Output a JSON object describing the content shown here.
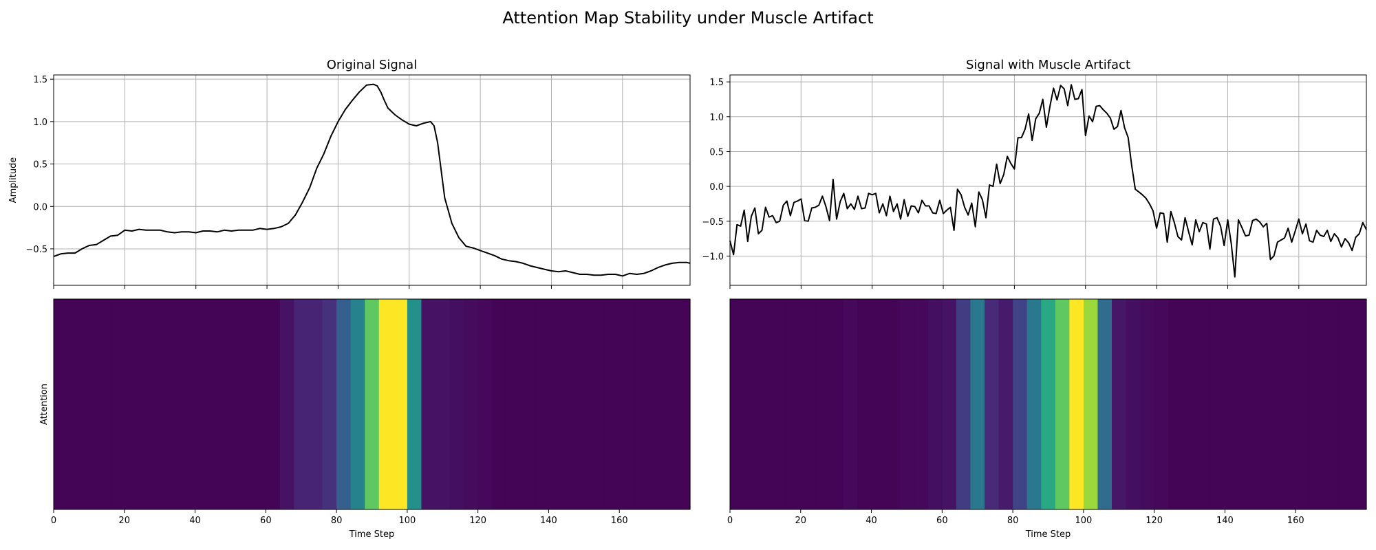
{
  "figure": {
    "title": "Attention Map Stability under Muscle Artifact"
  },
  "chart_data": [
    {
      "id": "orig-signal",
      "type": "line",
      "title": "Original Signal",
      "ylabel": "Amplitude",
      "xlabel": "",
      "xlim": [
        0,
        179
      ],
      "ylim": [
        -0.93,
        1.55
      ],
      "xticks": [
        0,
        20,
        40,
        60,
        80,
        100,
        120,
        140,
        160
      ],
      "yticks": [
        -0.5,
        0.0,
        0.5,
        1.0,
        1.5
      ],
      "ytick_labels": [
        "−0.5",
        "0.0",
        "0.5",
        "1.0",
        "1.5"
      ],
      "grid": true,
      "line_color": "#000000",
      "x": [
        0,
        2,
        4,
        6,
        8,
        10,
        12,
        14,
        16,
        18,
        20,
        22,
        24,
        26,
        28,
        30,
        32,
        34,
        36,
        38,
        40,
        42,
        44,
        46,
        48,
        50,
        52,
        54,
        56,
        58,
        60,
        62,
        64,
        66,
        68,
        70,
        72,
        74,
        76,
        78,
        80,
        82,
        84,
        86,
        88,
        90,
        91,
        92,
        93,
        94,
        96,
        98,
        100,
        102,
        104,
        106,
        107,
        108,
        110,
        112,
        114,
        116,
        118,
        120,
        122,
        124,
        126,
        128,
        130,
        132,
        134,
        136,
        138,
        140,
        142,
        144,
        146,
        148,
        150,
        152,
        154,
        156,
        158,
        160,
        162,
        164,
        166,
        168,
        170,
        172,
        174,
        176,
        178,
        179
      ],
      "values": [
        -0.59,
        -0.56,
        -0.55,
        -0.55,
        -0.5,
        -0.46,
        -0.45,
        -0.4,
        -0.35,
        -0.34,
        -0.28,
        -0.29,
        -0.27,
        -0.28,
        -0.28,
        -0.28,
        -0.3,
        -0.31,
        -0.3,
        -0.3,
        -0.31,
        -0.29,
        -0.29,
        -0.3,
        -0.28,
        -0.29,
        -0.28,
        -0.28,
        -0.28,
        -0.26,
        -0.27,
        -0.26,
        -0.24,
        -0.2,
        -0.1,
        0.05,
        0.22,
        0.45,
        0.62,
        0.83,
        1.0,
        1.14,
        1.25,
        1.35,
        1.43,
        1.44,
        1.42,
        1.35,
        1.25,
        1.16,
        1.08,
        1.02,
        0.97,
        0.95,
        0.98,
        1.0,
        0.95,
        0.75,
        0.1,
        -0.2,
        -0.37,
        -0.47,
        -0.49,
        -0.52,
        -0.55,
        -0.58,
        -0.62,
        -0.64,
        -0.65,
        -0.67,
        -0.7,
        -0.72,
        -0.74,
        -0.76,
        -0.77,
        -0.76,
        -0.78,
        -0.8,
        -0.8,
        -0.81,
        -0.81,
        -0.8,
        -0.8,
        -0.82,
        -0.79,
        -0.8,
        -0.79,
        -0.76,
        -0.72,
        -0.69,
        -0.67,
        -0.66,
        -0.66,
        -0.67
      ]
    },
    {
      "id": "artifact-signal",
      "type": "line",
      "title": "Signal with Muscle Artifact",
      "ylabel": "",
      "xlabel": "",
      "xlim": [
        0,
        179
      ],
      "ylim": [
        -1.42,
        1.6
      ],
      "xticks": [
        0,
        20,
        40,
        60,
        80,
        100,
        120,
        140,
        160
      ],
      "yticks": [
        -1.0,
        -0.5,
        0.0,
        0.5,
        1.0,
        1.5
      ],
      "ytick_labels": [
        "−1.0",
        "−0.5",
        "0.0",
        "0.5",
        "1.0",
        "1.5"
      ],
      "grid": true,
      "line_color": "#000000",
      "x": [
        0,
        1,
        2,
        3,
        4,
        5,
        6,
        7,
        8,
        9,
        10,
        11,
        12,
        13,
        14,
        15,
        16,
        17,
        18,
        19,
        20,
        21,
        22,
        23,
        24,
        25,
        26,
        27,
        28,
        29,
        30,
        31,
        32,
        33,
        34,
        35,
        36,
        37,
        38,
        39,
        40,
        41,
        42,
        43,
        44,
        45,
        46,
        47,
        48,
        49,
        50,
        51,
        52,
        53,
        54,
        55,
        56,
        57,
        58,
        59,
        60,
        61,
        62,
        63,
        64,
        65,
        66,
        67,
        68,
        69,
        70,
        71,
        72,
        73,
        74,
        75,
        76,
        77,
        78,
        79,
        80,
        81,
        82,
        83,
        84,
        85,
        86,
        87,
        88,
        89,
        90,
        91,
        92,
        93,
        94,
        95,
        96,
        97,
        98,
        99,
        100,
        101,
        102,
        103,
        104,
        105,
        106,
        107,
        108,
        109,
        110,
        111,
        112,
        113,
        114,
        115,
        116,
        117,
        118,
        119,
        120,
        121,
        122,
        123,
        124,
        125,
        126,
        127,
        128,
        129,
        130,
        131,
        132,
        133,
        134,
        135,
        136,
        137,
        138,
        139,
        140,
        141,
        142,
        143,
        144,
        145,
        146,
        147,
        148,
        149,
        150,
        151,
        152,
        153,
        154,
        155,
        156,
        157,
        158,
        159,
        160,
        161,
        162,
        163,
        164,
        165,
        166,
        167,
        168,
        169,
        170,
        171,
        172,
        173,
        174,
        175,
        176,
        177,
        178,
        179
      ],
      "values": [
        -0.78,
        -0.98,
        -0.55,
        -0.57,
        -0.34,
        -0.79,
        -0.43,
        -0.31,
        -0.68,
        -0.63,
        -0.3,
        -0.44,
        -0.42,
        -0.52,
        -0.5,
        -0.27,
        -0.21,
        -0.42,
        -0.23,
        -0.21,
        -0.18,
        -0.49,
        -0.5,
        -0.31,
        -0.3,
        -0.27,
        -0.14,
        -0.29,
        -0.49,
        0.1,
        -0.47,
        -0.22,
        -0.1,
        -0.32,
        -0.25,
        -0.33,
        -0.14,
        -0.32,
        -0.31,
        -0.1,
        -0.12,
        -0.1,
        -0.38,
        -0.25,
        -0.42,
        -0.14,
        -0.36,
        -0.25,
        -0.47,
        -0.19,
        -0.43,
        -0.28,
        -0.29,
        -0.38,
        -0.2,
        -0.28,
        -0.28,
        -0.38,
        -0.39,
        -0.2,
        -0.39,
        -0.34,
        -0.3,
        -0.63,
        -0.04,
        -0.12,
        -0.3,
        -0.41,
        -0.24,
        -0.58,
        -0.08,
        -0.19,
        -0.45,
        0.02,
        0.0,
        0.32,
        0.04,
        0.17,
        0.43,
        0.33,
        0.25,
        0.7,
        0.7,
        0.82,
        1.04,
        0.66,
        0.97,
        1.05,
        1.25,
        0.85,
        1.15,
        1.41,
        1.24,
        1.45,
        1.4,
        1.16,
        1.46,
        1.25,
        1.26,
        1.39,
        0.73,
        1.01,
        0.93,
        1.15,
        1.16,
        1.1,
        1.05,
        0.98,
        0.82,
        0.86,
        1.09,
        0.84,
        0.7,
        0.3,
        -0.04,
        -0.08,
        -0.12,
        -0.17,
        -0.25,
        -0.35,
        -0.6,
        -0.38,
        -0.39,
        -0.8,
        -0.36,
        -0.52,
        -0.72,
        -0.77,
        -0.45,
        -0.65,
        -0.84,
        -0.48,
        -0.65,
        -0.52,
        -0.54,
        -0.9,
        -0.47,
        -0.45,
        -0.57,
        -0.85,
        -0.48,
        -0.82,
        -1.3,
        -0.48,
        -0.59,
        -0.71,
        -0.7,
        -0.49,
        -0.47,
        -0.51,
        -0.58,
        -0.53,
        -1.05,
        -1.0,
        -0.8,
        -0.77,
        -0.74,
        -0.6,
        -0.8,
        -0.64,
        -0.47,
        -0.68,
        -0.54,
        -0.78,
        -0.8,
        -0.63,
        -0.7,
        -0.72,
        -0.63,
        -0.79,
        -0.68,
        -0.74,
        -0.87,
        -0.75,
        -0.81,
        -0.92,
        -0.73,
        -0.68,
        -0.52,
        -0.62
      ]
    },
    {
      "id": "orig-attention",
      "type": "heatmap",
      "title": "",
      "ylabel": "Attention",
      "xlabel": "Time Step",
      "xlim": [
        0,
        180
      ],
      "xticks": [
        0,
        20,
        40,
        60,
        80,
        100,
        120,
        140,
        160
      ],
      "bin_width": 4,
      "colormap": "viridis",
      "values": [
        0.01,
        0.01,
        0.01,
        0.01,
        0.01,
        0.01,
        0.01,
        0.01,
        0.01,
        0.01,
        0.01,
        0.01,
        0.01,
        0.01,
        0.01,
        0.01,
        0.05,
        0.1,
        0.1,
        0.14,
        0.3,
        0.45,
        0.75,
        1.0,
        1.0,
        0.5,
        0.05,
        0.05,
        0.04,
        0.03,
        0.02,
        0.01,
        0.01,
        0.01,
        0.01,
        0.01,
        0.01,
        0.01,
        0.01,
        0.01,
        0.01,
        0.01,
        0.01,
        0.01,
        0.01
      ]
    },
    {
      "id": "artifact-attention",
      "type": "heatmap",
      "title": "",
      "ylabel": "",
      "xlabel": "Time Step",
      "xlim": [
        0,
        180
      ],
      "xticks": [
        0,
        20,
        40,
        60,
        80,
        100,
        120,
        140,
        160
      ],
      "bin_width": 4,
      "colormap": "viridis",
      "values": [
        0.01,
        0.01,
        0.01,
        0.01,
        0.01,
        0.01,
        0.01,
        0.01,
        0.02,
        0.01,
        0.01,
        0.01,
        0.02,
        0.02,
        0.04,
        0.05,
        0.18,
        0.4,
        0.12,
        0.07,
        0.2,
        0.4,
        0.6,
        0.75,
        1.0,
        0.85,
        0.35,
        0.06,
        0.04,
        0.03,
        0.02,
        0.01,
        0.01,
        0.01,
        0.01,
        0.01,
        0.01,
        0.01,
        0.01,
        0.01,
        0.01,
        0.01,
        0.01,
        0.01,
        0.01
      ]
    }
  ]
}
